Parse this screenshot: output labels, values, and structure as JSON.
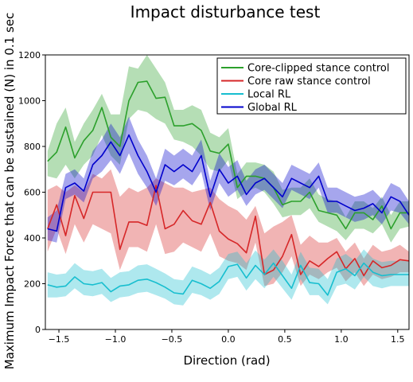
{
  "chart_data": {
    "type": "line",
    "title": "Impact disturbance test",
    "xlabel": "Direction (rad)",
    "ylabel": "Maximum Impact Force that can be sustained (N) in 0.1 sec",
    "xlim": [
      -1.62,
      1.6
    ],
    "ylim": [
      0,
      1200
    ],
    "xticks": [
      -1.5,
      -1.0,
      -0.5,
      0.0,
      0.5,
      1.0,
      1.5
    ],
    "xtick_labels": [
      "−1.5",
      "−1.0",
      "−0.5",
      "0.0",
      "0.5",
      "1.0",
      "1.5"
    ],
    "yticks": [
      0,
      200,
      400,
      600,
      800,
      1000,
      1200
    ],
    "ytick_labels": [
      "0",
      "200",
      "400",
      "600",
      "800",
      "1000",
      "1200"
    ],
    "legend_position": "top-right",
    "x": [
      -1.6,
      -1.52,
      -1.44,
      -1.36,
      -1.28,
      -1.2,
      -1.12,
      -1.04,
      -0.96,
      -0.88,
      -0.8,
      -0.72,
      -0.64,
      -0.56,
      -0.48,
      -0.4,
      -0.32,
      -0.24,
      -0.16,
      -0.08,
      0.0,
      0.08,
      0.16,
      0.24,
      0.32,
      0.4,
      0.48,
      0.56,
      0.64,
      0.72,
      0.8,
      0.88,
      0.96,
      1.04,
      1.12,
      1.2,
      1.28,
      1.36,
      1.44,
      1.52,
      1.6
    ],
    "series": [
      {
        "name": "Core-clipped stance control",
        "color": "#2ca02c",
        "values": [
          735,
          775,
          885,
          750,
          825,
          870,
          970,
          840,
          800,
          1000,
          1080,
          1085,
          1010,
          1015,
          890,
          890,
          900,
          870,
          780,
          770,
          810,
          620,
          670,
          670,
          660,
          620,
          545,
          560,
          560,
          600,
          520,
          510,
          500,
          440,
          510,
          510,
          480,
          540,
          440,
          510,
          510
        ],
        "lower": [
          670,
          660,
          720,
          660,
          720,
          760,
          850,
          760,
          720,
          920,
          960,
          950,
          920,
          900,
          830,
          820,
          800,
          760,
          700,
          690,
          740,
          570,
          600,
          620,
          600,
          550,
          490,
          500,
          500,
          530,
          470,
          450,
          430,
          390,
          440,
          440,
          420,
          460,
          380,
          440,
          450
        ],
        "upper": [
          780,
          900,
          970,
          820,
          900,
          960,
          1030,
          940,
          940,
          1150,
          1140,
          1200,
          1140,
          1080,
          960,
          960,
          980,
          960,
          860,
          840,
          880,
          680,
          730,
          730,
          720,
          690,
          610,
          620,
          620,
          660,
          590,
          570,
          560,
          490,
          560,
          560,
          530,
          580,
          500,
          560,
          560
        ]
      },
      {
        "name": "Core raw stance control",
        "color": "#d62728",
        "values": [
          440,
          545,
          410,
          585,
          485,
          600,
          600,
          600,
          350,
          470,
          470,
          455,
          630,
          440,
          460,
          520,
          475,
          460,
          555,
          430,
          395,
          375,
          335,
          495,
          240,
          260,
          320,
          415,
          240,
          300,
          275,
          310,
          340,
          265,
          310,
          235,
          300,
          270,
          280,
          305,
          300
        ],
        "lower": [
          340,
          440,
          330,
          460,
          380,
          460,
          440,
          420,
          260,
          360,
          360,
          340,
          460,
          330,
          340,
          380,
          360,
          340,
          420,
          320,
          300,
          290,
          260,
          380,
          190,
          200,
          250,
          320,
          190,
          240,
          220,
          250,
          270,
          210,
          250,
          190,
          240,
          220,
          230,
          250,
          250
        ],
        "upper": [
          610,
          630,
          600,
          630,
          600,
          680,
          660,
          700,
          580,
          620,
          600,
          620,
          660,
          640,
          620,
          620,
          600,
          610,
          620,
          570,
          540,
          520,
          480,
          540,
          420,
          450,
          470,
          500,
          370,
          410,
          380,
          380,
          400,
          340,
          380,
          310,
          370,
          340,
          350,
          370,
          340
        ]
      },
      {
        "name": "Local RL",
        "color": "#17becf",
        "values": [
          195,
          185,
          190,
          230,
          200,
          195,
          205,
          165,
          190,
          195,
          215,
          220,
          205,
          185,
          160,
          155,
          215,
          200,
          180,
          210,
          275,
          285,
          225,
          280,
          240,
          290,
          235,
          180,
          280,
          205,
          200,
          150,
          250,
          265,
          235,
          290,
          250,
          235,
          240,
          240,
          240
        ],
        "lower": [
          140,
          140,
          145,
          180,
          150,
          145,
          155,
          120,
          140,
          145,
          160,
          165,
          150,
          135,
          110,
          105,
          160,
          150,
          130,
          155,
          220,
          230,
          170,
          220,
          180,
          230,
          180,
          130,
          220,
          150,
          150,
          110,
          190,
          200,
          175,
          230,
          190,
          180,
          190,
          190,
          190
        ],
        "upper": [
          250,
          240,
          245,
          290,
          260,
          255,
          265,
          225,
          250,
          255,
          280,
          285,
          265,
          245,
          220,
          215,
          275,
          260,
          240,
          270,
          330,
          340,
          290,
          345,
          305,
          350,
          300,
          240,
          340,
          270,
          265,
          220,
          310,
          330,
          300,
          350,
          310,
          295,
          300,
          300,
          300
        ]
      },
      {
        "name": "Global RL",
        "color": "#0000cc",
        "values": [
          440,
          430,
          620,
          640,
          605,
          720,
          760,
          820,
          760,
          850,
          760,
          690,
          600,
          720,
          690,
          720,
          690,
          760,
          580,
          700,
          640,
          670,
          590,
          640,
          660,
          620,
          580,
          660,
          640,
          620,
          670,
          560,
          560,
          540,
          520,
          530,
          550,
          510,
          580,
          560,
          500
        ],
        "lower": [
          390,
          380,
          570,
          590,
          555,
          660,
          690,
          740,
          680,
          770,
          680,
          620,
          540,
          650,
          630,
          660,
          630,
          690,
          520,
          640,
          580,
          610,
          540,
          590,
          610,
          570,
          530,
          610,
          590,
          570,
          620,
          510,
          510,
          490,
          470,
          480,
          500,
          460,
          520,
          510,
          460
        ],
        "upper": [
          490,
          520,
          680,
          700,
          660,
          780,
          830,
          900,
          840,
          930,
          830,
          760,
          660,
          790,
          760,
          790,
          760,
          830,
          650,
          770,
          710,
          740,
          650,
          700,
          720,
          680,
          640,
          720,
          700,
          680,
          730,
          620,
          620,
          600,
          580,
          590,
          610,
          570,
          640,
          620,
          560
        ]
      }
    ]
  }
}
